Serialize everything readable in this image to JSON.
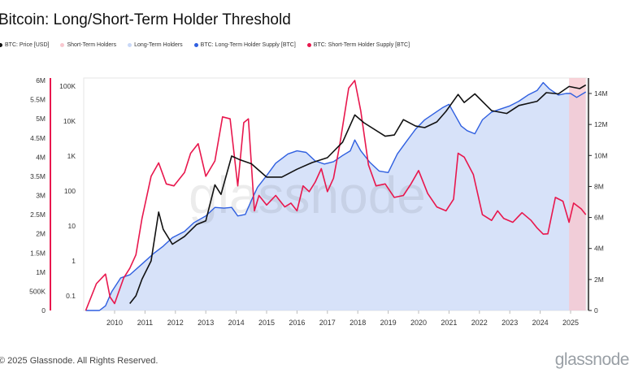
{
  "title": "Bitcoin: Long/Short-Term Holder Threshold",
  "legend": [
    {
      "label": "BTC: Price [USD]",
      "color": "#111111"
    },
    {
      "label": "Short-Term Holders",
      "color": "#f8c8cf"
    },
    {
      "label": "Long-Term Holders",
      "color": "#c9d8f7"
    },
    {
      "label": "BTC: Long-Term Holder Supply [BTC]",
      "color": "#2f5fe0"
    },
    {
      "label": "BTC: Short-Term Holder Supply [BTC]",
      "color": "#e8174d"
    }
  ],
  "footer": "© 2025 Glassnode. All Rights Reserved.",
  "brand": "glassnode",
  "watermark": "glassnode",
  "chart_data": {
    "type": "line",
    "title": "Bitcoin: Long/Short-Term Holder Threshold",
    "x_ticks": [
      "2010",
      "2011",
      "2012",
      "2013",
      "2014",
      "2015",
      "2016",
      "2017",
      "2018",
      "2019",
      "2020",
      "2021",
      "2022",
      "2023",
      "2024",
      "2025"
    ],
    "axes": {
      "left_outer": {
        "ticks": [
          "0",
          "500K",
          "1M",
          "1.5M",
          "2M",
          "2.5M",
          "3M",
          "3.5M",
          "4M",
          "4.5M",
          "5M",
          "5.5M",
          "6M"
        ],
        "range": [
          0,
          6000000
        ],
        "series": "BTC: Short-Term Holder Supply [BTC]"
      },
      "left_inner": {
        "ticks": [
          "0.1",
          "1",
          "10",
          "100",
          "1K",
          "10K",
          "100K"
        ],
        "scale": "log",
        "series": "BTC: Price [USD]"
      },
      "right": {
        "ticks": [
          "0",
          "2M",
          "4M",
          "6M",
          "8M",
          "10M",
          "12M",
          "14M"
        ],
        "range": [
          0,
          14700000
        ],
        "series": "BTC: Long-Term Holder Supply [BTC]"
      }
    },
    "grid": false,
    "legend_position": "top-left",
    "series": [
      {
        "name": "BTC: Price [USD]",
        "color": "#111111",
        "axis": "left_inner",
        "x": [
          2010.5,
          2010.7,
          2010.9,
          2011.2,
          2011.45,
          2011.6,
          2011.9,
          2012.3,
          2012.7,
          2013.0,
          2013.3,
          2013.5,
          2013.85,
          2014.1,
          2014.5,
          2015.0,
          2015.5,
          2016.0,
          2016.5,
          2017.0,
          2017.5,
          2017.9,
          2018.2,
          2018.9,
          2019.2,
          2019.5,
          2019.9,
          2020.2,
          2020.6,
          2020.9,
          2021.3,
          2021.5,
          2021.85,
          2022.4,
          2022.9,
          2023.3,
          2023.9,
          2024.2,
          2024.6,
          2024.95,
          2025.3,
          2025.5
        ],
        "y": [
          0.06,
          0.1,
          0.3,
          1,
          25,
          8,
          3,
          5,
          11,
          14,
          150,
          80,
          1000,
          800,
          600,
          250,
          250,
          420,
          650,
          900,
          2500,
          15000,
          9000,
          3700,
          4000,
          11000,
          7200,
          6500,
          9500,
          19000,
          58000,
          34000,
          60000,
          20000,
          16500,
          28000,
          37000,
          65000,
          60000,
          98000,
          85000,
          108000
        ]
      },
      {
        "name": "BTC: Short-Term Holder Supply [BTC]",
        "color": "#e8174d",
        "axis": "left_outer",
        "x": [
          2009.05,
          2009.4,
          2009.7,
          2009.85,
          2010.0,
          2010.3,
          2010.5,
          2010.7,
          2010.9,
          2011.2,
          2011.45,
          2011.7,
          2011.95,
          2012.3,
          2012.5,
          2012.75,
          2013.0,
          2013.3,
          2013.55,
          2013.8,
          2014.05,
          2014.25,
          2014.4,
          2014.6,
          2014.75,
          2015.0,
          2015.3,
          2015.6,
          2015.8,
          2016.0,
          2016.2,
          2016.4,
          2016.6,
          2016.8,
          2017.0,
          2017.2,
          2017.4,
          2017.7,
          2017.9,
          2018.1,
          2018.35,
          2018.6,
          2018.9,
          2019.2,
          2019.5,
          2019.75,
          2020.0,
          2020.3,
          2020.6,
          2020.9,
          2021.15,
          2021.3,
          2021.5,
          2021.8,
          2022.1,
          2022.4,
          2022.6,
          2022.8,
          2023.1,
          2023.4,
          2023.7,
          2023.9,
          2024.1,
          2024.25,
          2024.5,
          2024.75,
          2024.95,
          2025.1,
          2025.35,
          2025.5
        ],
        "y": [
          0,
          700000,
          950000,
          350000,
          180000,
          850000,
          1100000,
          1450000,
          2400000,
          3500000,
          3850000,
          3300000,
          3250000,
          3600000,
          4100000,
          4350000,
          3500000,
          3900000,
          5050000,
          5000000,
          3250000,
          4900000,
          5000000,
          2600000,
          3000000,
          2750000,
          3000000,
          2700000,
          2800000,
          2600000,
          3250000,
          3100000,
          3350000,
          3700000,
          3100000,
          3450000,
          4300000,
          5800000,
          6000000,
          5200000,
          3800000,
          3250000,
          3300000,
          2950000,
          3000000,
          3300000,
          3650000,
          3050000,
          2700000,
          2600000,
          2900000,
          4100000,
          4000000,
          3550000,
          2500000,
          2350000,
          2600000,
          2400000,
          2300000,
          2550000,
          2350000,
          2150000,
          1990000,
          2000000,
          2950000,
          2850000,
          2300000,
          2800000,
          2650000,
          2500000
        ]
      },
      {
        "name": "BTC: Long-Term Holder Supply [BTC]",
        "color": "#2f5fe0",
        "axis": "right",
        "x": [
          2009.05,
          2009.5,
          2009.7,
          2009.9,
          2010.2,
          2010.5,
          2010.9,
          2011.3,
          2011.6,
          2011.9,
          2012.3,
          2012.6,
          2013.0,
          2013.3,
          2013.6,
          2013.85,
          2014.05,
          2014.3,
          2014.5,
          2014.7,
          2015.0,
          2015.3,
          2015.7,
          2016.0,
          2016.3,
          2016.6,
          2016.9,
          2017.2,
          2017.5,
          2017.75,
          2017.9,
          2018.1,
          2018.4,
          2018.7,
          2019.0,
          2019.3,
          2019.6,
          2019.9,
          2020.2,
          2020.5,
          2020.8,
          2021.0,
          2021.2,
          2021.4,
          2021.6,
          2021.85,
          2022.1,
          2022.4,
          2022.7,
          2023.0,
          2023.3,
          2023.6,
          2023.9,
          2024.1,
          2024.3,
          2024.6,
          2024.85,
          2025.0,
          2025.2,
          2025.5
        ],
        "y": [
          0,
          0,
          300000,
          1200000,
          2100000,
          2300000,
          3000000,
          3700000,
          4150000,
          4700000,
          5100000,
          5650000,
          6100000,
          6650000,
          6600000,
          6650000,
          6100000,
          6200000,
          7100000,
          7950000,
          8700000,
          9500000,
          10100000,
          10300000,
          10200000,
          9650000,
          9450000,
          9600000,
          10000000,
          10300000,
          11000000,
          10300000,
          9550000,
          9000000,
          8900000,
          10100000,
          10900000,
          11700000,
          12300000,
          12700000,
          13100000,
          13300000,
          12600000,
          11900000,
          11600000,
          11400000,
          12300000,
          12800000,
          13000000,
          13200000,
          13500000,
          13900000,
          14200000,
          14700000,
          14300000,
          13900000,
          14000000,
          14000000,
          13750000,
          14100000
        ]
      }
    ],
    "shaded_regions": [
      {
        "name": "Long-Term Holders",
        "color": "#c9d8f7",
        "from": 2009.05,
        "to": 2025.5
      },
      {
        "name": "Short-Term Holders",
        "color": "#f8c8cf",
        "from": 2024.95,
        "to": 2025.5
      }
    ]
  }
}
